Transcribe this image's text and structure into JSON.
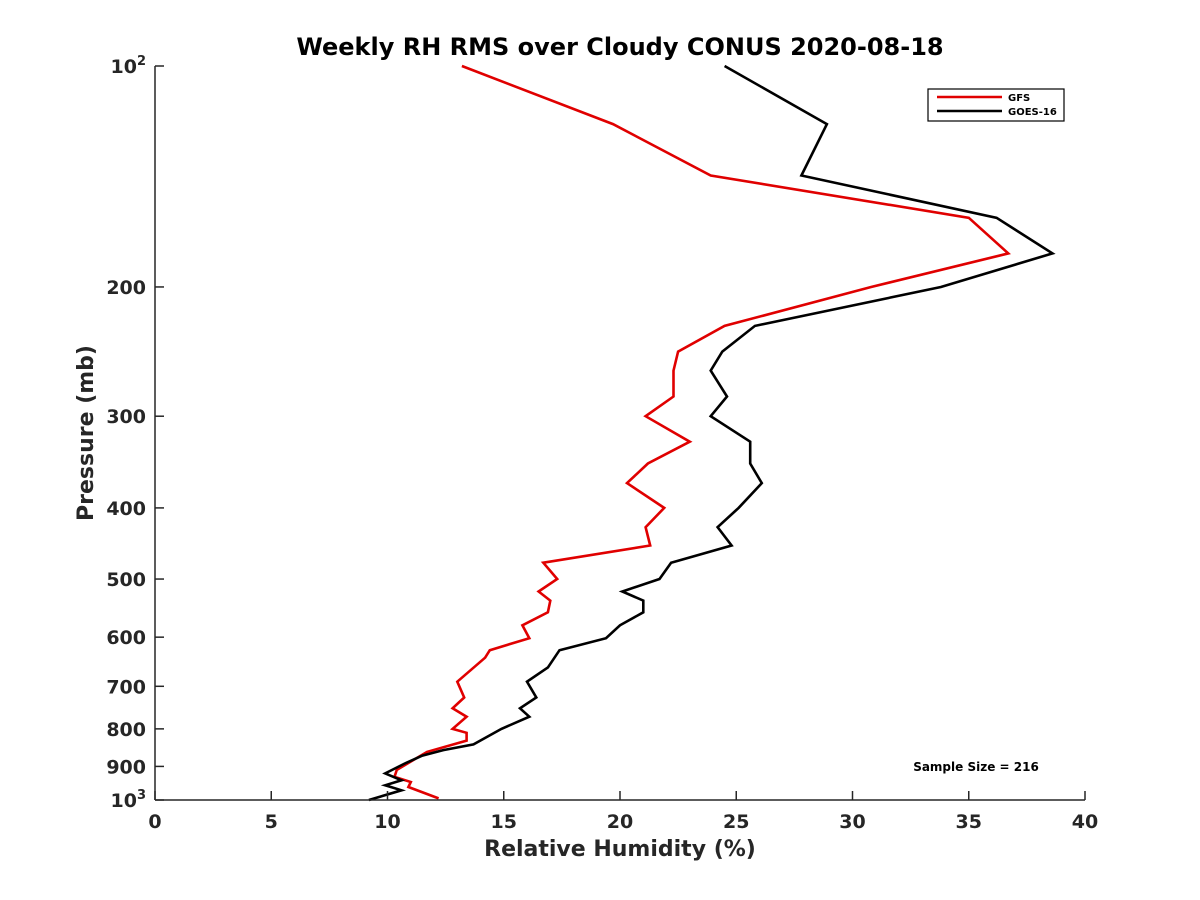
{
  "chart_data": {
    "type": "line",
    "title": "Weekly RH RMS over Cloudy CONUS 2020-08-18",
    "xlabel": "Relative Humidity (%)",
    "ylabel": "Pressure (mb)",
    "xlim": [
      0,
      40
    ],
    "ylim": [
      100,
      1000
    ],
    "y_scale": "log",
    "y_reversed": true,
    "x_ticks": [
      0,
      5,
      10,
      15,
      20,
      25,
      30,
      35,
      40
    ],
    "y_ticks": [
      {
        "value": 100,
        "base": "10",
        "exp": "2"
      },
      {
        "value": 200,
        "label": "200"
      },
      {
        "value": 300,
        "label": "300"
      },
      {
        "value": 400,
        "label": "400"
      },
      {
        "value": 500,
        "label": "500"
      },
      {
        "value": 600,
        "label": "600"
      },
      {
        "value": 700,
        "label": "700"
      },
      {
        "value": 800,
        "label": "800"
      },
      {
        "value": 900,
        "label": "900"
      },
      {
        "value": 1000,
        "base": "10",
        "exp": "3"
      }
    ],
    "grid": false,
    "legend_position": "top-right",
    "annotation": "Sample Size = 216",
    "series": [
      {
        "name": "GFS",
        "color": "#e00000",
        "points": [
          {
            "rh": 13.2,
            "p": 100
          },
          {
            "rh": 19.7,
            "p": 120
          },
          {
            "rh": 23.9,
            "p": 141
          },
          {
            "rh": 35.0,
            "p": 161
          },
          {
            "rh": 36.7,
            "p": 180
          },
          {
            "rh": 30.8,
            "p": 200
          },
          {
            "rh": 24.5,
            "p": 226
          },
          {
            "rh": 22.5,
            "p": 245
          },
          {
            "rh": 22.3,
            "p": 260
          },
          {
            "rh": 22.3,
            "p": 282
          },
          {
            "rh": 21.1,
            "p": 300
          },
          {
            "rh": 23.0,
            "p": 325
          },
          {
            "rh": 21.2,
            "p": 348
          },
          {
            "rh": 20.3,
            "p": 370
          },
          {
            "rh": 21.9,
            "p": 400
          },
          {
            "rh": 21.1,
            "p": 425
          },
          {
            "rh": 21.3,
            "p": 450
          },
          {
            "rh": 16.7,
            "p": 475
          },
          {
            "rh": 17.3,
            "p": 500
          },
          {
            "rh": 16.5,
            "p": 520
          },
          {
            "rh": 17.0,
            "p": 535
          },
          {
            "rh": 16.9,
            "p": 555
          },
          {
            "rh": 15.8,
            "p": 578
          },
          {
            "rh": 16.1,
            "p": 602
          },
          {
            "rh": 14.4,
            "p": 625
          },
          {
            "rh": 14.2,
            "p": 640
          },
          {
            "rh": 13.0,
            "p": 690
          },
          {
            "rh": 13.3,
            "p": 725
          },
          {
            "rh": 12.8,
            "p": 750
          },
          {
            "rh": 13.4,
            "p": 770
          },
          {
            "rh": 12.8,
            "p": 800
          },
          {
            "rh": 13.4,
            "p": 810
          },
          {
            "rh": 13.4,
            "p": 830
          },
          {
            "rh": 11.7,
            "p": 860
          },
          {
            "rh": 10.4,
            "p": 910
          },
          {
            "rh": 10.3,
            "p": 930
          },
          {
            "rh": 11.0,
            "p": 945
          },
          {
            "rh": 10.9,
            "p": 960
          },
          {
            "rh": 12.2,
            "p": 995
          }
        ]
      },
      {
        "name": "GOES-16",
        "color": "#000000",
        "points": [
          {
            "rh": 24.5,
            "p": 100
          },
          {
            "rh": 28.9,
            "p": 120
          },
          {
            "rh": 27.8,
            "p": 141
          },
          {
            "rh": 36.2,
            "p": 161
          },
          {
            "rh": 38.6,
            "p": 180
          },
          {
            "rh": 33.8,
            "p": 200
          },
          {
            "rh": 25.8,
            "p": 226
          },
          {
            "rh": 24.4,
            "p": 245
          },
          {
            "rh": 23.9,
            "p": 260
          },
          {
            "rh": 24.6,
            "p": 282
          },
          {
            "rh": 23.9,
            "p": 300
          },
          {
            "rh": 25.6,
            "p": 325
          },
          {
            "rh": 25.6,
            "p": 348
          },
          {
            "rh": 26.1,
            "p": 370
          },
          {
            "rh": 25.1,
            "p": 400
          },
          {
            "rh": 24.2,
            "p": 425
          },
          {
            "rh": 24.8,
            "p": 450
          },
          {
            "rh": 22.2,
            "p": 475
          },
          {
            "rh": 21.7,
            "p": 500
          },
          {
            "rh": 20.1,
            "p": 520
          },
          {
            "rh": 21.0,
            "p": 535
          },
          {
            "rh": 21.0,
            "p": 555
          },
          {
            "rh": 20.0,
            "p": 578
          },
          {
            "rh": 19.4,
            "p": 602
          },
          {
            "rh": 17.4,
            "p": 625
          },
          {
            "rh": 16.9,
            "p": 660
          },
          {
            "rh": 16.0,
            "p": 690
          },
          {
            "rh": 16.4,
            "p": 725
          },
          {
            "rh": 15.7,
            "p": 750
          },
          {
            "rh": 16.1,
            "p": 770
          },
          {
            "rh": 14.9,
            "p": 800
          },
          {
            "rh": 13.7,
            "p": 840
          },
          {
            "rh": 12.4,
            "p": 855
          },
          {
            "rh": 11.5,
            "p": 870
          },
          {
            "rh": 10.8,
            "p": 890
          },
          {
            "rh": 9.9,
            "p": 920
          },
          {
            "rh": 10.6,
            "p": 940
          },
          {
            "rh": 9.9,
            "p": 955
          },
          {
            "rh": 10.6,
            "p": 970
          },
          {
            "rh": 9.2,
            "p": 1000
          }
        ]
      }
    ]
  }
}
